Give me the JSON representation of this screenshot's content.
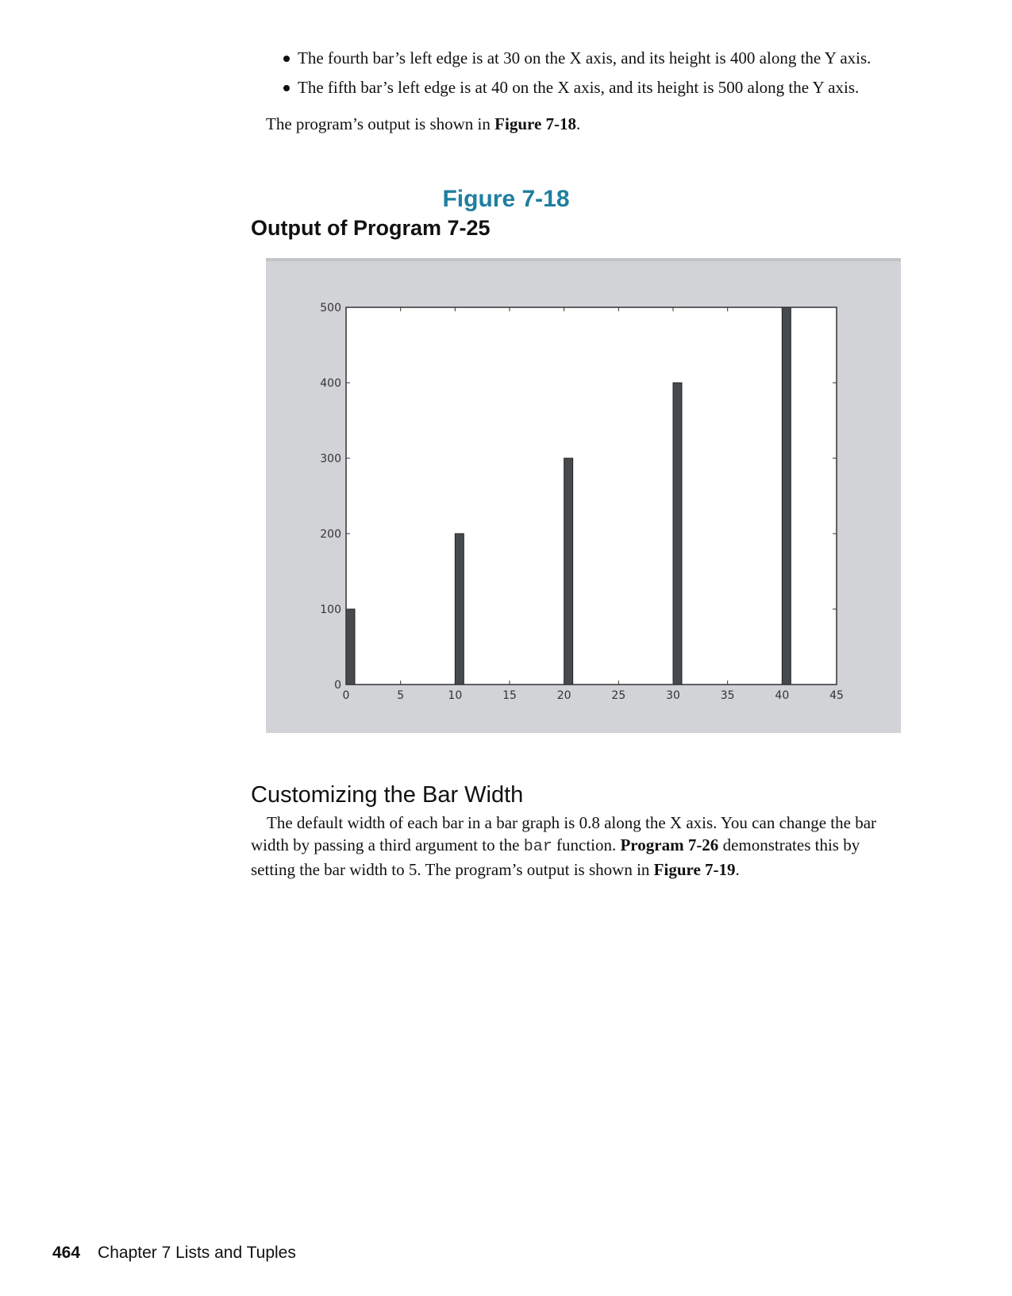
{
  "bullets": [
    "The fourth bar’s left edge is at 30 on the X axis, and its height is 400 along the Y axis.",
    "The fifth bar’s left edge is at 40 on the X axis, and its height is 500 along the Y axis."
  ],
  "output_intro": {
    "text": "The program’s output is shown in ",
    "ref": "Figure 7-18",
    "end": "."
  },
  "figure": {
    "number": "Figure 7-18",
    "title": "Output of Program 7-25"
  },
  "chart_data": {
    "type": "bar",
    "x": [
      0,
      10,
      20,
      30,
      40
    ],
    "values": [
      100,
      200,
      300,
      400,
      500
    ],
    "bar_width": 0.8,
    "xlim": [
      0,
      45
    ],
    "ylim": [
      0,
      500
    ],
    "xticks": [
      "0",
      "5",
      "10",
      "15",
      "20",
      "25",
      "30",
      "35",
      "40",
      "45"
    ],
    "yticks": [
      "0",
      "100",
      "200",
      "300",
      "400",
      "500"
    ],
    "title": "",
    "xlabel": "",
    "ylabel": "",
    "grid": false,
    "bar_color": "#474a4d",
    "background_color": "#d2d3d7"
  },
  "section": {
    "heading": "Customizing the Bar Width",
    "p1": "The default width of each bar in a bar graph is 0.8 along the X axis. You can change the bar",
    "p2a": "width by passing a third argument to the ",
    "p2_code": "bar",
    "p2b": " function. ",
    "p2_ref": "Program 7-26",
    "p2c": " demonstrates this by",
    "p3a": "setting the bar width to 5. The program’s output is shown in ",
    "p3_ref": "Figure 7-19",
    "p3b": "."
  },
  "footer": {
    "page_number": "464",
    "chapter": "Chapter 7 Lists and Tuples"
  }
}
